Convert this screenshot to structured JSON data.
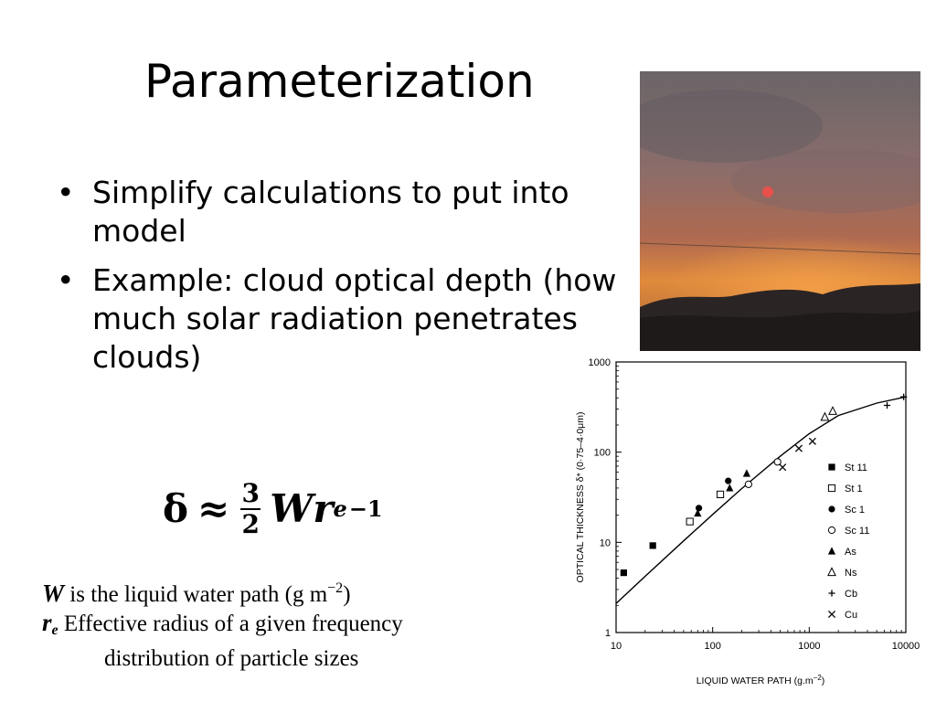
{
  "slide": {
    "title": "Parameterization",
    "bullets": [
      "Simplify calculations to put into model",
      "Example: cloud optical depth (how much solar radiation penetrates clouds)"
    ],
    "bullet_glyph": "•"
  },
  "formula": {
    "lhs": "δ",
    "approx": "≈",
    "numerator": "3",
    "denominator": "2",
    "W": "W",
    "r": "r",
    "sub": "e",
    "exp": "−1"
  },
  "definitions": {
    "w_symbol": "W",
    "w_text": "is the liquid water path (g m",
    "w_exp": "−2",
    "w_close": ")",
    "r_symbol": "r",
    "r_sub": "e",
    "r_line1": "Effective radius of a given frequency",
    "r_line2": "distribution of particle sizes"
  },
  "chart_data": {
    "type": "scatter",
    "xlabel": "LIQUID WATER PATH (g.m",
    "xlabel_exp": "−2",
    "xlabel_close": ")",
    "ylabel": "OPTICAL THICKNESS δ* (0·75–4·0μm)",
    "xscale": "log",
    "yscale": "log",
    "xlim": [
      10,
      10000
    ],
    "ylim": [
      1,
      1000
    ],
    "x_ticks": [
      10,
      100,
      1000,
      10000
    ],
    "x_tick_labels": [
      "10",
      "100",
      "1000",
      "10000"
    ],
    "y_ticks": [
      1,
      10,
      100,
      1000
    ],
    "y_tick_labels": [
      "1",
      "10",
      "100",
      "1000"
    ],
    "legend_position": "right",
    "series": [
      {
        "name": "St 11",
        "marker": "filled-square",
        "points": [
          [
            12,
            4.6
          ],
          [
            24,
            9.2
          ]
        ]
      },
      {
        "name": "St 1",
        "marker": "open-square",
        "points": [
          [
            58,
            17
          ],
          [
            120,
            34
          ]
        ]
      },
      {
        "name": "Sc 1",
        "marker": "filled-circle",
        "points": [
          [
            72,
            24
          ],
          [
            145,
            48
          ]
        ]
      },
      {
        "name": "Sc 11",
        "marker": "open-circle",
        "points": [
          [
            235,
            44
          ],
          [
            470,
            78
          ]
        ]
      },
      {
        "name": "As",
        "marker": "filled-triangle",
        "points": [
          [
            70,
            21
          ],
          [
            150,
            40
          ],
          [
            225,
            58
          ]
        ]
      },
      {
        "name": "Ns",
        "marker": "open-triangle",
        "points": [
          [
            1450,
            245
          ],
          [
            1750,
            285
          ]
        ]
      },
      {
        "name": "Cb",
        "marker": "plus",
        "points": [
          [
            6400,
            330
          ],
          [
            9500,
            410
          ]
        ]
      },
      {
        "name": "Cu",
        "marker": "cross",
        "points": [
          [
            530,
            68
          ],
          [
            780,
            110
          ],
          [
            1080,
            132
          ]
        ]
      }
    ],
    "fit_curve": [
      [
        10,
        2.1
      ],
      [
        20,
        4.2
      ],
      [
        50,
        10.4
      ],
      [
        100,
        20.4
      ],
      [
        200,
        39.5
      ],
      [
        500,
        90
      ],
      [
        1000,
        160
      ],
      [
        2000,
        255
      ],
      [
        5000,
        350
      ],
      [
        10000,
        410
      ]
    ]
  },
  "photo": {
    "colors": {
      "sky_top": "#6e6668",
      "sky_mid": "#9a6f64",
      "glow": "#e58b3c",
      "ground": "#2b2424",
      "sun": "#e8504a"
    }
  }
}
